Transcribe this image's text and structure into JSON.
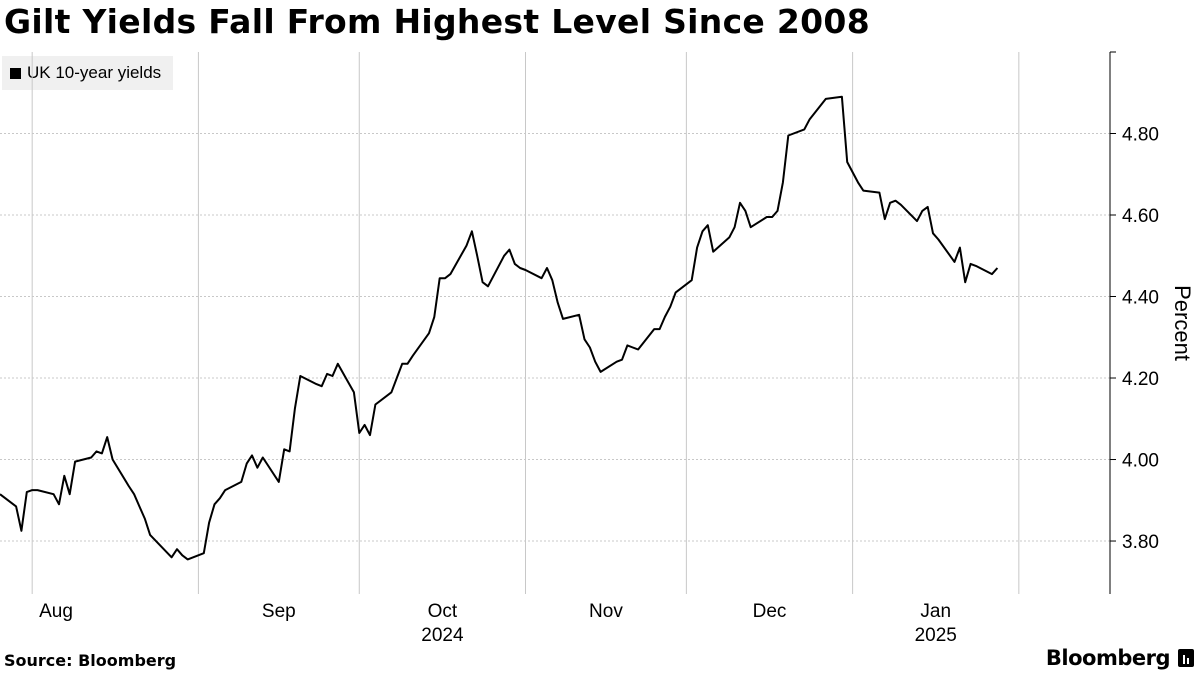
{
  "header": {
    "title": "Gilt Yields Fall From Highest Level Since 2008"
  },
  "footer": {
    "source": "Source: Bloomberg",
    "brand": "Bloomberg"
  },
  "chart_data": {
    "type": "line",
    "title": "Gilt Yields Fall From Highest Level Since 2008",
    "ylabel": "Percent",
    "xlabel": "",
    "ylim": [
      3.67,
      5.0
    ],
    "yticks": [
      3.8,
      4.0,
      4.2,
      4.4,
      4.6,
      4.8
    ],
    "ytick_labels": [
      "3.80",
      "4.00",
      "4.20",
      "4.40",
      "4.60",
      "4.80"
    ],
    "xlim": [
      "2024-07-26",
      "2025-02-18"
    ],
    "month_ticks": [
      {
        "label": "Aug",
        "date": "2024-08-01"
      },
      {
        "label": "Sep",
        "date": "2024-09-01"
      },
      {
        "label": "Oct",
        "date": "2024-10-01"
      },
      {
        "label": "Nov",
        "date": "2024-11-01"
      },
      {
        "label": "Dec",
        "date": "2024-12-01"
      },
      {
        "label": "Jan",
        "date": "2025-01-01"
      }
    ],
    "month_boundaries": [
      "2024-08-01",
      "2024-09-01",
      "2024-10-01",
      "2024-11-01",
      "2024-12-01",
      "2025-01-01",
      "2025-02-01"
    ],
    "year_labels": [
      {
        "label": "2024",
        "date": "2024-10-01"
      },
      {
        "label": "2025",
        "date": "2025-01-01"
      }
    ],
    "grid": true,
    "legend": "top-left",
    "series": [
      {
        "name": "UK 10-year yields",
        "color": "#000000",
        "points": [
          [
            "2024-07-26",
            3.915
          ],
          [
            "2024-07-29",
            3.885
          ],
          [
            "2024-07-30",
            3.825
          ],
          [
            "2024-07-31",
            3.92
          ],
          [
            "2024-08-01",
            3.925
          ],
          [
            "2024-08-02",
            3.925
          ],
          [
            "2024-08-05",
            3.915
          ],
          [
            "2024-08-06",
            3.89
          ],
          [
            "2024-08-07",
            3.96
          ],
          [
            "2024-08-08",
            3.915
          ],
          [
            "2024-08-09",
            3.995
          ],
          [
            "2024-08-12",
            4.005
          ],
          [
            "2024-08-13",
            4.02
          ],
          [
            "2024-08-14",
            4.015
          ],
          [
            "2024-08-15",
            4.055
          ],
          [
            "2024-08-16",
            4.0
          ],
          [
            "2024-08-19",
            3.935
          ],
          [
            "2024-08-20",
            3.915
          ],
          [
            "2024-08-21",
            3.885
          ],
          [
            "2024-08-22",
            3.855
          ],
          [
            "2024-08-23",
            3.815
          ],
          [
            "2024-08-27",
            3.76
          ],
          [
            "2024-08-28",
            3.78
          ],
          [
            "2024-08-29",
            3.765
          ],
          [
            "2024-08-30",
            3.755
          ],
          [
            "2024-09-02",
            3.77
          ],
          [
            "2024-09-03",
            3.845
          ],
          [
            "2024-09-04",
            3.89
          ],
          [
            "2024-09-05",
            3.905
          ],
          [
            "2024-09-06",
            3.925
          ],
          [
            "2024-09-09",
            3.945
          ],
          [
            "2024-09-10",
            3.99
          ],
          [
            "2024-09-11",
            4.01
          ],
          [
            "2024-09-12",
            3.98
          ],
          [
            "2024-09-13",
            4.005
          ],
          [
            "2024-09-16",
            3.945
          ],
          [
            "2024-09-17",
            4.025
          ],
          [
            "2024-09-18",
            4.02
          ],
          [
            "2024-09-19",
            4.125
          ],
          [
            "2024-09-20",
            4.205
          ],
          [
            "2024-09-23",
            4.185
          ],
          [
            "2024-09-24",
            4.18
          ],
          [
            "2024-09-25",
            4.21
          ],
          [
            "2024-09-26",
            4.205
          ],
          [
            "2024-09-27",
            4.235
          ],
          [
            "2024-09-30",
            4.165
          ],
          [
            "2024-10-01",
            4.065
          ],
          [
            "2024-10-02",
            4.085
          ],
          [
            "2024-10-03",
            4.06
          ],
          [
            "2024-10-04",
            4.135
          ],
          [
            "2024-10-07",
            4.165
          ],
          [
            "2024-10-08",
            4.2
          ],
          [
            "2024-10-09",
            4.235
          ],
          [
            "2024-10-10",
            4.235
          ],
          [
            "2024-10-11",
            4.255
          ],
          [
            "2024-10-14",
            4.31
          ],
          [
            "2024-10-15",
            4.35
          ],
          [
            "2024-10-16",
            4.445
          ],
          [
            "2024-10-17",
            4.445
          ],
          [
            "2024-10-18",
            4.455
          ],
          [
            "2024-10-21",
            4.525
          ],
          [
            "2024-10-22",
            4.56
          ],
          [
            "2024-10-23",
            4.5
          ],
          [
            "2024-10-24",
            4.435
          ],
          [
            "2024-10-25",
            4.425
          ],
          [
            "2024-10-28",
            4.5
          ],
          [
            "2024-10-29",
            4.515
          ],
          [
            "2024-10-30",
            4.48
          ],
          [
            "2024-10-31",
            4.47
          ],
          [
            "2024-11-01",
            4.465
          ],
          [
            "2024-11-04",
            4.445
          ],
          [
            "2024-11-05",
            4.47
          ],
          [
            "2024-11-06",
            4.44
          ],
          [
            "2024-11-07",
            4.385
          ],
          [
            "2024-11-08",
            4.345
          ],
          [
            "2024-11-11",
            4.355
          ],
          [
            "2024-11-12",
            4.295
          ],
          [
            "2024-11-13",
            4.275
          ],
          [
            "2024-11-14",
            4.24
          ],
          [
            "2024-11-15",
            4.215
          ],
          [
            "2024-11-18",
            4.24
          ],
          [
            "2024-11-19",
            4.245
          ],
          [
            "2024-11-20",
            4.28
          ],
          [
            "2024-11-21",
            4.275
          ],
          [
            "2024-11-22",
            4.27
          ],
          [
            "2024-11-25",
            4.32
          ],
          [
            "2024-11-26",
            4.32
          ],
          [
            "2024-11-27",
            4.35
          ],
          [
            "2024-11-28",
            4.375
          ],
          [
            "2024-11-29",
            4.41
          ],
          [
            "2024-12-02",
            4.44
          ],
          [
            "2024-12-03",
            4.52
          ],
          [
            "2024-12-04",
            4.56
          ],
          [
            "2024-12-05",
            4.575
          ],
          [
            "2024-12-06",
            4.51
          ],
          [
            "2024-12-09",
            4.545
          ],
          [
            "2024-12-10",
            4.57
          ],
          [
            "2024-12-11",
            4.63
          ],
          [
            "2024-12-12",
            4.61
          ],
          [
            "2024-12-13",
            4.57
          ],
          [
            "2024-12-16",
            4.595
          ],
          [
            "2024-12-17",
            4.595
          ],
          [
            "2024-12-18",
            4.61
          ],
          [
            "2024-12-19",
            4.68
          ],
          [
            "2024-12-20",
            4.795
          ],
          [
            "2024-12-23",
            4.81
          ],
          [
            "2024-12-24",
            4.835
          ],
          [
            "2024-12-27",
            4.885
          ],
          [
            "2024-12-30",
            4.89
          ],
          [
            "2024-12-31",
            4.73
          ],
          [
            "2025-01-02",
            4.68
          ],
          [
            "2025-01-03",
            4.66
          ],
          [
            "2025-01-06",
            4.655
          ],
          [
            "2025-01-07",
            4.59
          ],
          [
            "2025-01-08",
            4.63
          ],
          [
            "2025-01-09",
            4.635
          ],
          [
            "2025-01-10",
            4.625
          ],
          [
            "2025-01-13",
            4.585
          ],
          [
            "2025-01-14",
            4.61
          ],
          [
            "2025-01-15",
            4.62
          ],
          [
            "2025-01-16",
            4.555
          ],
          [
            "2025-01-17",
            4.54
          ],
          [
            "2025-01-20",
            4.485
          ],
          [
            "2025-01-21",
            4.52
          ],
          [
            "2025-01-22",
            4.435
          ],
          [
            "2025-01-23",
            4.48
          ],
          [
            "2025-01-24",
            4.475
          ],
          [
            "2025-01-27",
            4.455
          ],
          [
            "2025-01-28",
            4.47
          ]
        ]
      }
    ]
  }
}
